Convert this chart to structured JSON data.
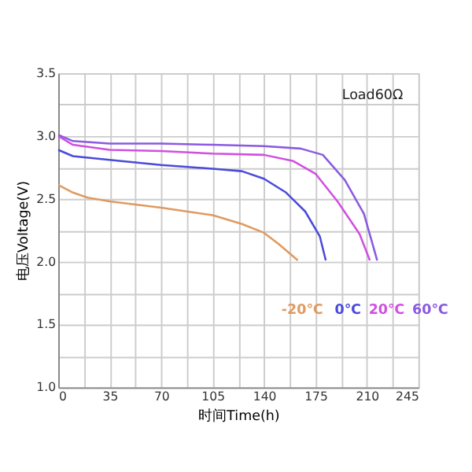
{
  "chart_data": {
    "type": "line",
    "xlabel": "时间Time(h)",
    "ylabel": "电压Voltage(V)",
    "xlim": [
      0,
      245
    ],
    "ylim": [
      1.0,
      3.5
    ],
    "xticks": [
      0,
      {
        "value": 17.5,
        "label": null
      },
      35,
      {
        "value": 52.5,
        "label": null
      },
      70,
      {
        "value": 87.5,
        "label": null
      },
      105,
      {
        "value": 122.5,
        "label": null
      },
      140,
      {
        "value": 157.5,
        "label": null
      },
      175,
      {
        "value": 192.5,
        "label": null
      },
      210,
      {
        "value": 227.5,
        "label": null
      },
      245
    ],
    "yticks": [
      {
        "value": 1.0,
        "label": "1.0"
      },
      {
        "value": 1.25,
        "label": null
      },
      {
        "value": 1.5,
        "label": "1.5"
      },
      {
        "value": 1.75,
        "label": null
      },
      {
        "value": 2.0,
        "label": "2.0"
      },
      {
        "value": 2.25,
        "label": null
      },
      {
        "value": 2.5,
        "label": "2.5"
      },
      {
        "value": 2.75,
        "label": null
      },
      {
        "value": 3.0,
        "label": "3.0"
      },
      {
        "value": 3.25,
        "label": null
      },
      {
        "value": 3.5,
        "label": "3.5"
      }
    ],
    "grid": true,
    "legend": "bottom right",
    "line_style": "solid",
    "marker": "none",
    "annotations": [
      "Load60Ω"
    ],
    "series": [
      {
        "name": "-20℃",
        "color": "#e09a60",
        "x": [
          0,
          10,
          20,
          35,
          70,
          105,
          125,
          140,
          150,
          163
        ],
        "values": [
          2.61,
          2.55,
          2.51,
          2.48,
          2.43,
          2.37,
          2.3,
          2.23,
          2.14,
          2.01
        ]
      },
      {
        "name": "0℃",
        "color": "#4a4adc",
        "x": [
          0,
          10,
          35,
          70,
          105,
          125,
          140,
          155,
          168,
          178,
          182
        ],
        "values": [
          2.89,
          2.84,
          2.81,
          2.77,
          2.74,
          2.72,
          2.66,
          2.55,
          2.4,
          2.2,
          2.01
        ]
      },
      {
        "name": "20℃",
        "color": "#d050e0",
        "x": [
          0,
          10,
          35,
          70,
          105,
          140,
          160,
          175,
          190,
          205,
          212
        ],
        "values": [
          3.0,
          2.93,
          2.89,
          2.88,
          2.86,
          2.85,
          2.8,
          2.7,
          2.48,
          2.22,
          2.01
        ]
      },
      {
        "name": "60℃",
        "color": "#8a5ae0",
        "x": [
          0,
          10,
          35,
          70,
          105,
          140,
          165,
          180,
          195,
          208,
          217
        ],
        "values": [
          3.01,
          2.96,
          2.94,
          2.94,
          2.93,
          2.92,
          2.9,
          2.85,
          2.65,
          2.38,
          2.01
        ]
      }
    ]
  }
}
